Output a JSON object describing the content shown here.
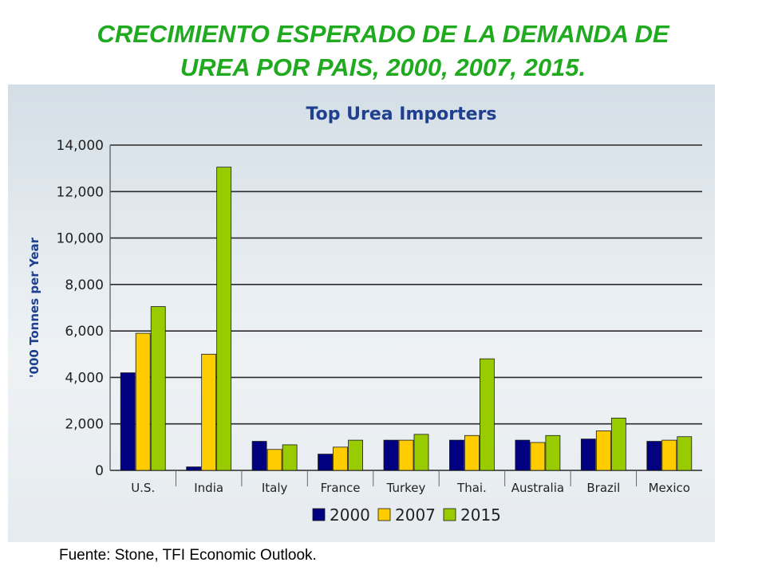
{
  "slide": {
    "title_line1": "CRECIMIENTO ESPERADO DE LA DEMANDA DE",
    "title_line2": "UREA POR PAIS, 2000, 2007, 2015.",
    "source": "Fuente: Stone, TFI Economic Outlook."
  },
  "chart_data": {
    "type": "bar",
    "title": "Top Urea Importers",
    "ylabel": "'000 Tonnes per Year",
    "xlabel": "",
    "ylim": [
      0,
      14000
    ],
    "yticks": [
      0,
      2000,
      4000,
      6000,
      8000,
      10000,
      12000,
      14000
    ],
    "ytick_labels": [
      "0",
      "2,000",
      "4,000",
      "6,000",
      "8,000",
      "10,000",
      "12,000",
      "14,000"
    ],
    "grid": true,
    "legend_position": "bottom",
    "categories": [
      "U.S.",
      "India",
      "Italy",
      "France",
      "Turkey",
      "Thai.",
      "Australia",
      "Brazil",
      "Mexico"
    ],
    "series": [
      {
        "name": "2000",
        "color": "#000080",
        "values": [
          4200,
          150,
          1250,
          700,
          1300,
          1300,
          1300,
          1350,
          1250
        ]
      },
      {
        "name": "2007",
        "color": "#ffcc00",
        "values": [
          5900,
          5000,
          900,
          1000,
          1300,
          1500,
          1200,
          1700,
          1300
        ]
      },
      {
        "name": "2015",
        "color": "#99cc00",
        "values": [
          7050,
          13050,
          1100,
          1300,
          1550,
          4800,
          1500,
          2250,
          1450
        ]
      }
    ]
  }
}
